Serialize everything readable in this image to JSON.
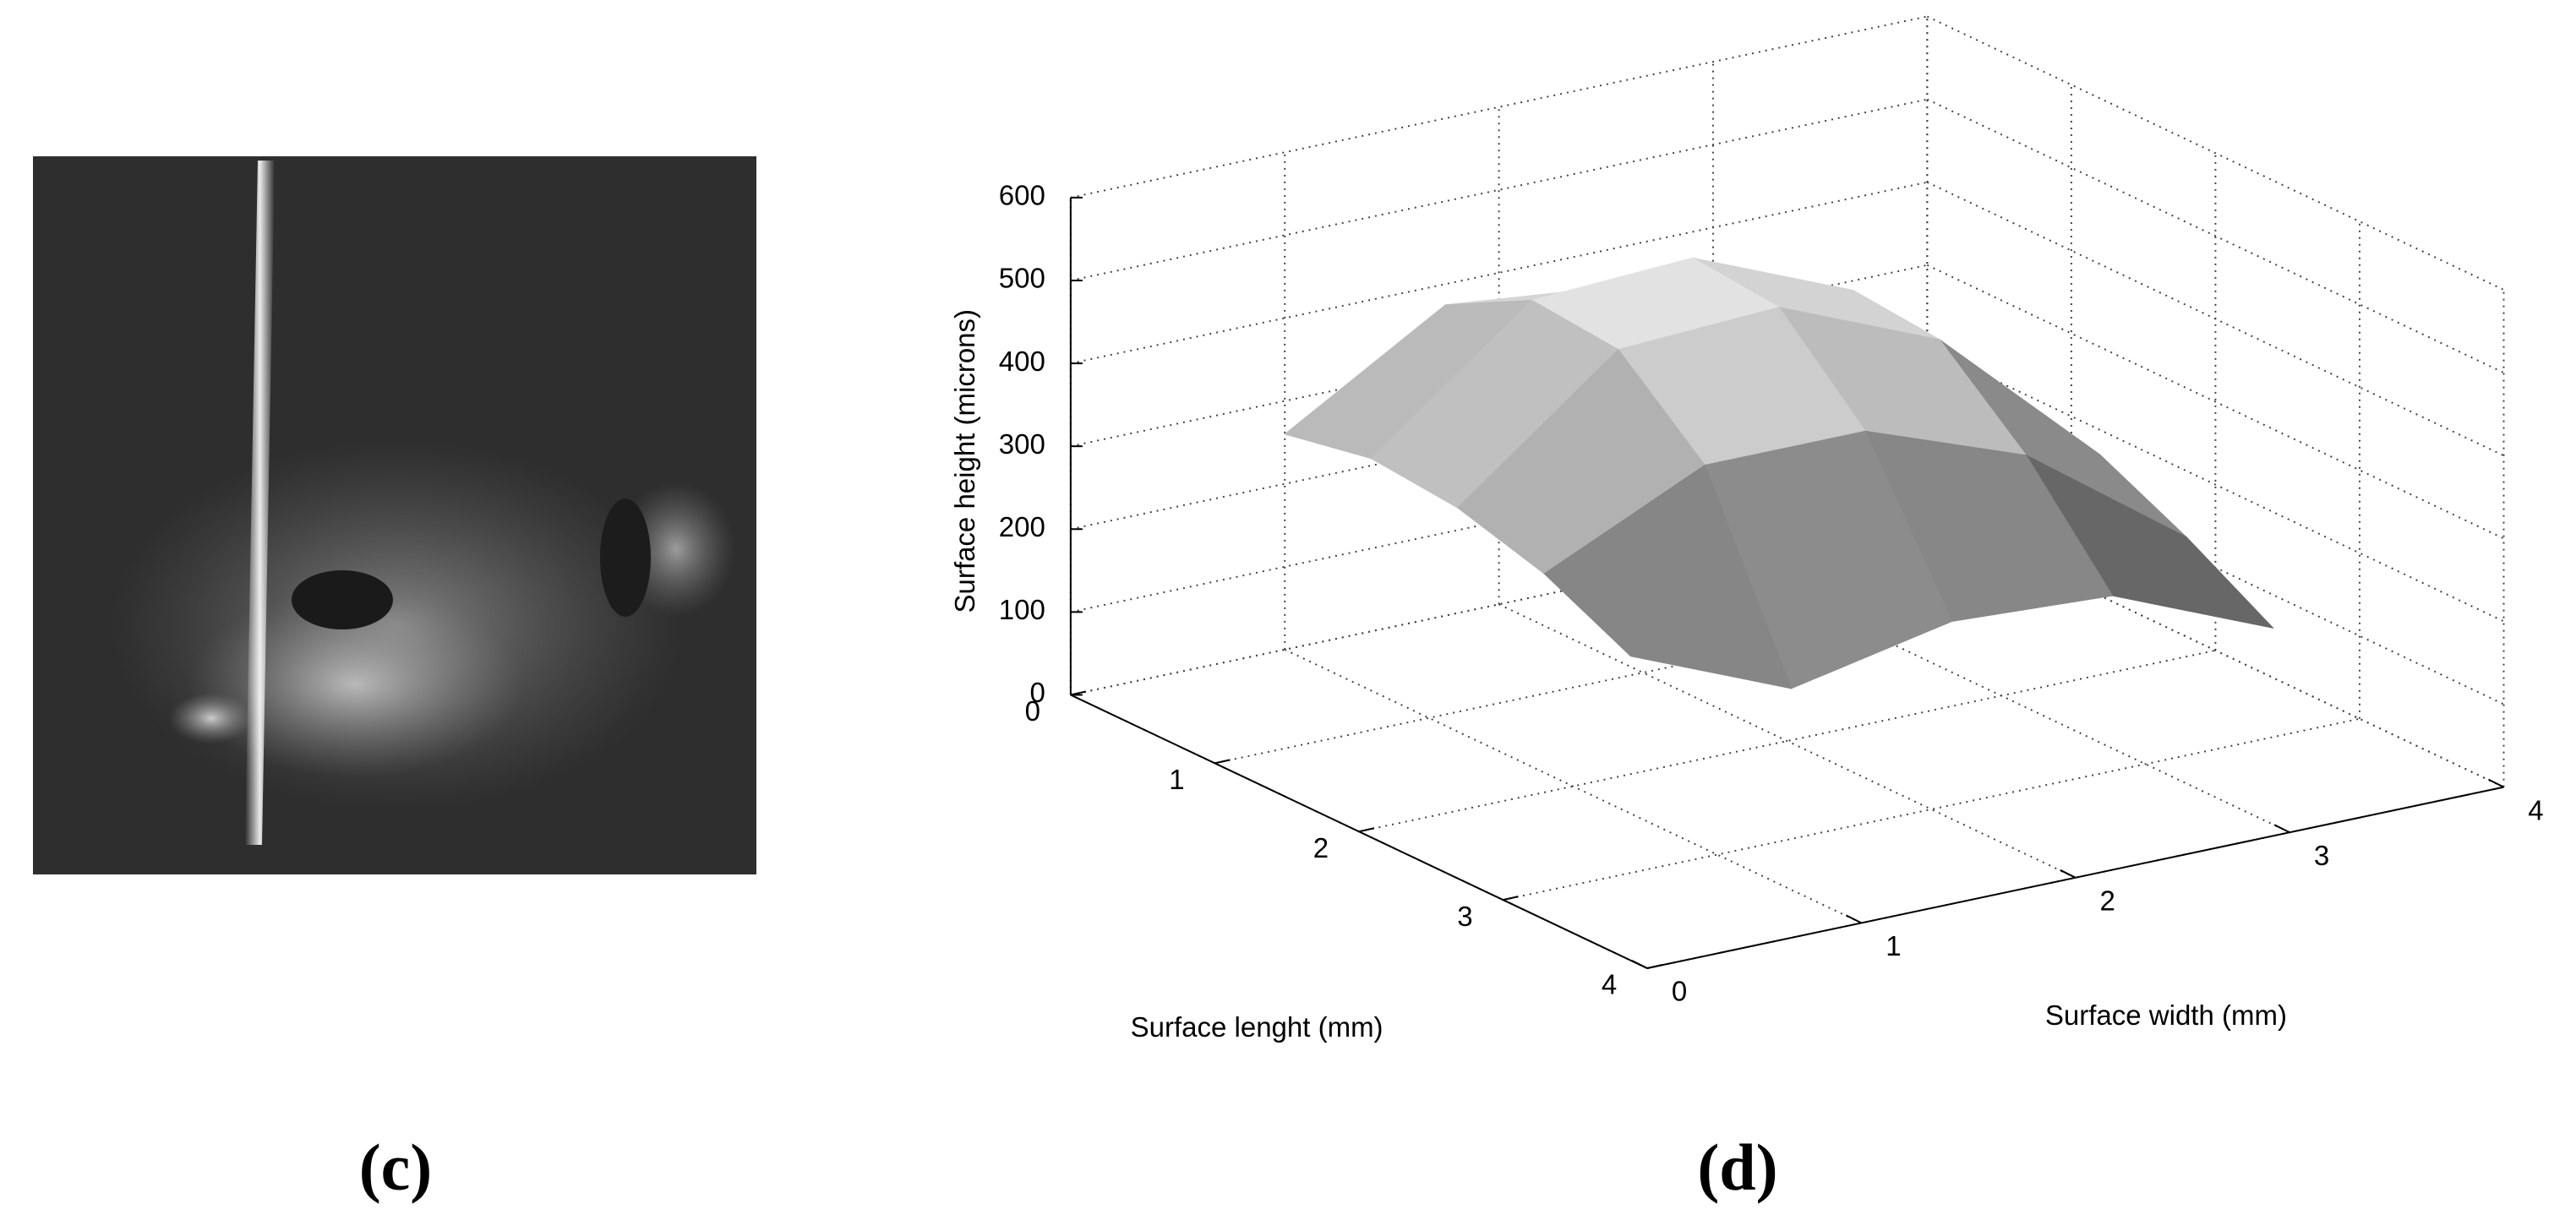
{
  "panels": [
    {
      "label": "(c)"
    },
    {
      "label": "(d)"
    }
  ],
  "chart_data": {
    "type": "surface3d",
    "zlabel": "Surface height (microns)",
    "xlabel": "Surface lenght (mm)",
    "ylabel": "Surface width (mm)",
    "xlim": [
      0,
      4
    ],
    "xticks": [
      0,
      1,
      2,
      3,
      4
    ],
    "ylim": [
      0,
      4
    ],
    "yticks": [
      0,
      1,
      2,
      3,
      4
    ],
    "zlim": [
      0,
      600
    ],
    "zticks": [
      0,
      100,
      200,
      300,
      400,
      500,
      600
    ],
    "grid": true,
    "x": [
      0,
      0.6,
      1.2,
      1.8,
      2.4
    ],
    "y": [
      1,
      1.75,
      2.5,
      3.25,
      4
    ],
    "z": [
      [
        260,
        375,
        355,
        295,
        165
      ],
      [
        280,
        430,
        440,
        360,
        190
      ],
      [
        270,
        420,
        430,
        350,
        170
      ],
      [
        240,
        330,
        330,
        260,
        120
      ],
      [
        190,
        110,
        150,
        140,
        60
      ]
    ]
  }
}
